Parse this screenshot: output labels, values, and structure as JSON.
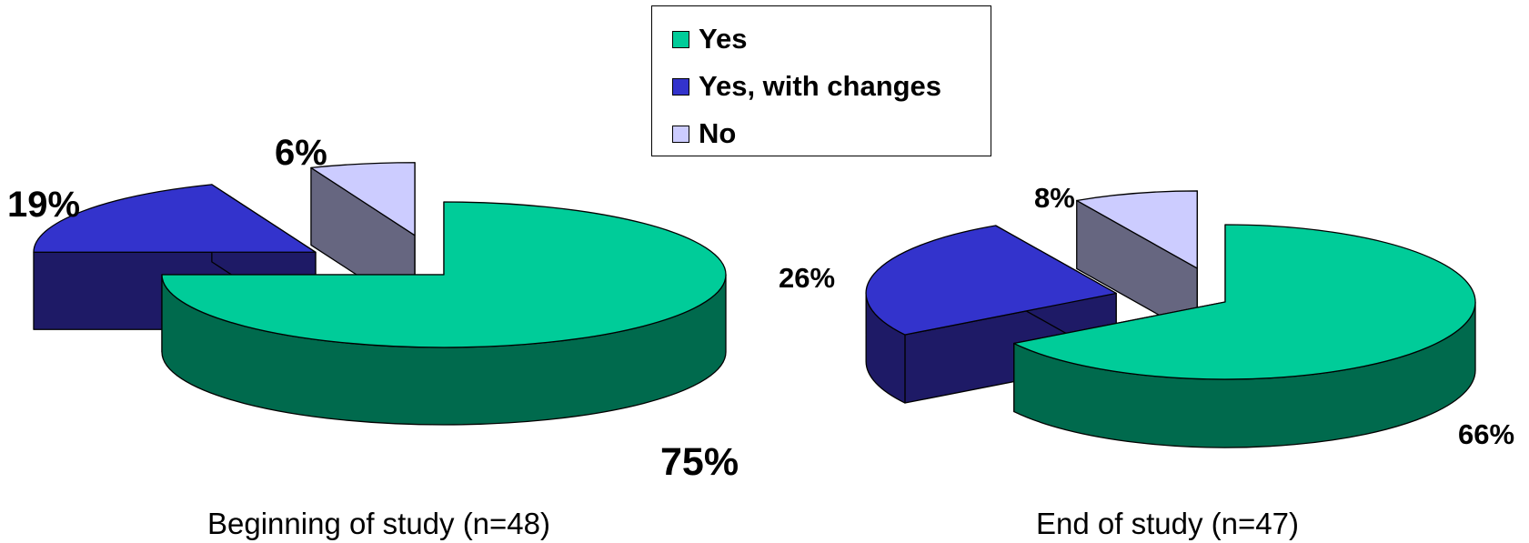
{
  "chart_data": [
    {
      "type": "pie",
      "title": "Beginning of study (n=48)",
      "categories": [
        "Yes",
        "Yes, with changes",
        "No"
      ],
      "values": [
        75,
        19,
        6
      ],
      "value_labels": [
        "75%",
        "19%",
        "6%"
      ],
      "exploded": true,
      "three_d": true
    },
    {
      "type": "pie",
      "title": "End of study (n=47)",
      "categories": [
        "Yes",
        "Yes, with changes",
        "No"
      ],
      "values": [
        66,
        26,
        8
      ],
      "value_labels": [
        "66%",
        "26%",
        "8%"
      ],
      "exploded": true,
      "three_d": true
    }
  ],
  "legend": {
    "placement": "top-center",
    "entries": [
      "Yes",
      "Yes, with changes",
      "No"
    ]
  },
  "colors": {
    "yes": "#00CC99",
    "yes_side": "#006A4D",
    "yes_with_changes": "#3333CC",
    "yes_with_changes_side": "#1E1A66",
    "no": "#CCCCFF",
    "no_side": "#666680"
  }
}
